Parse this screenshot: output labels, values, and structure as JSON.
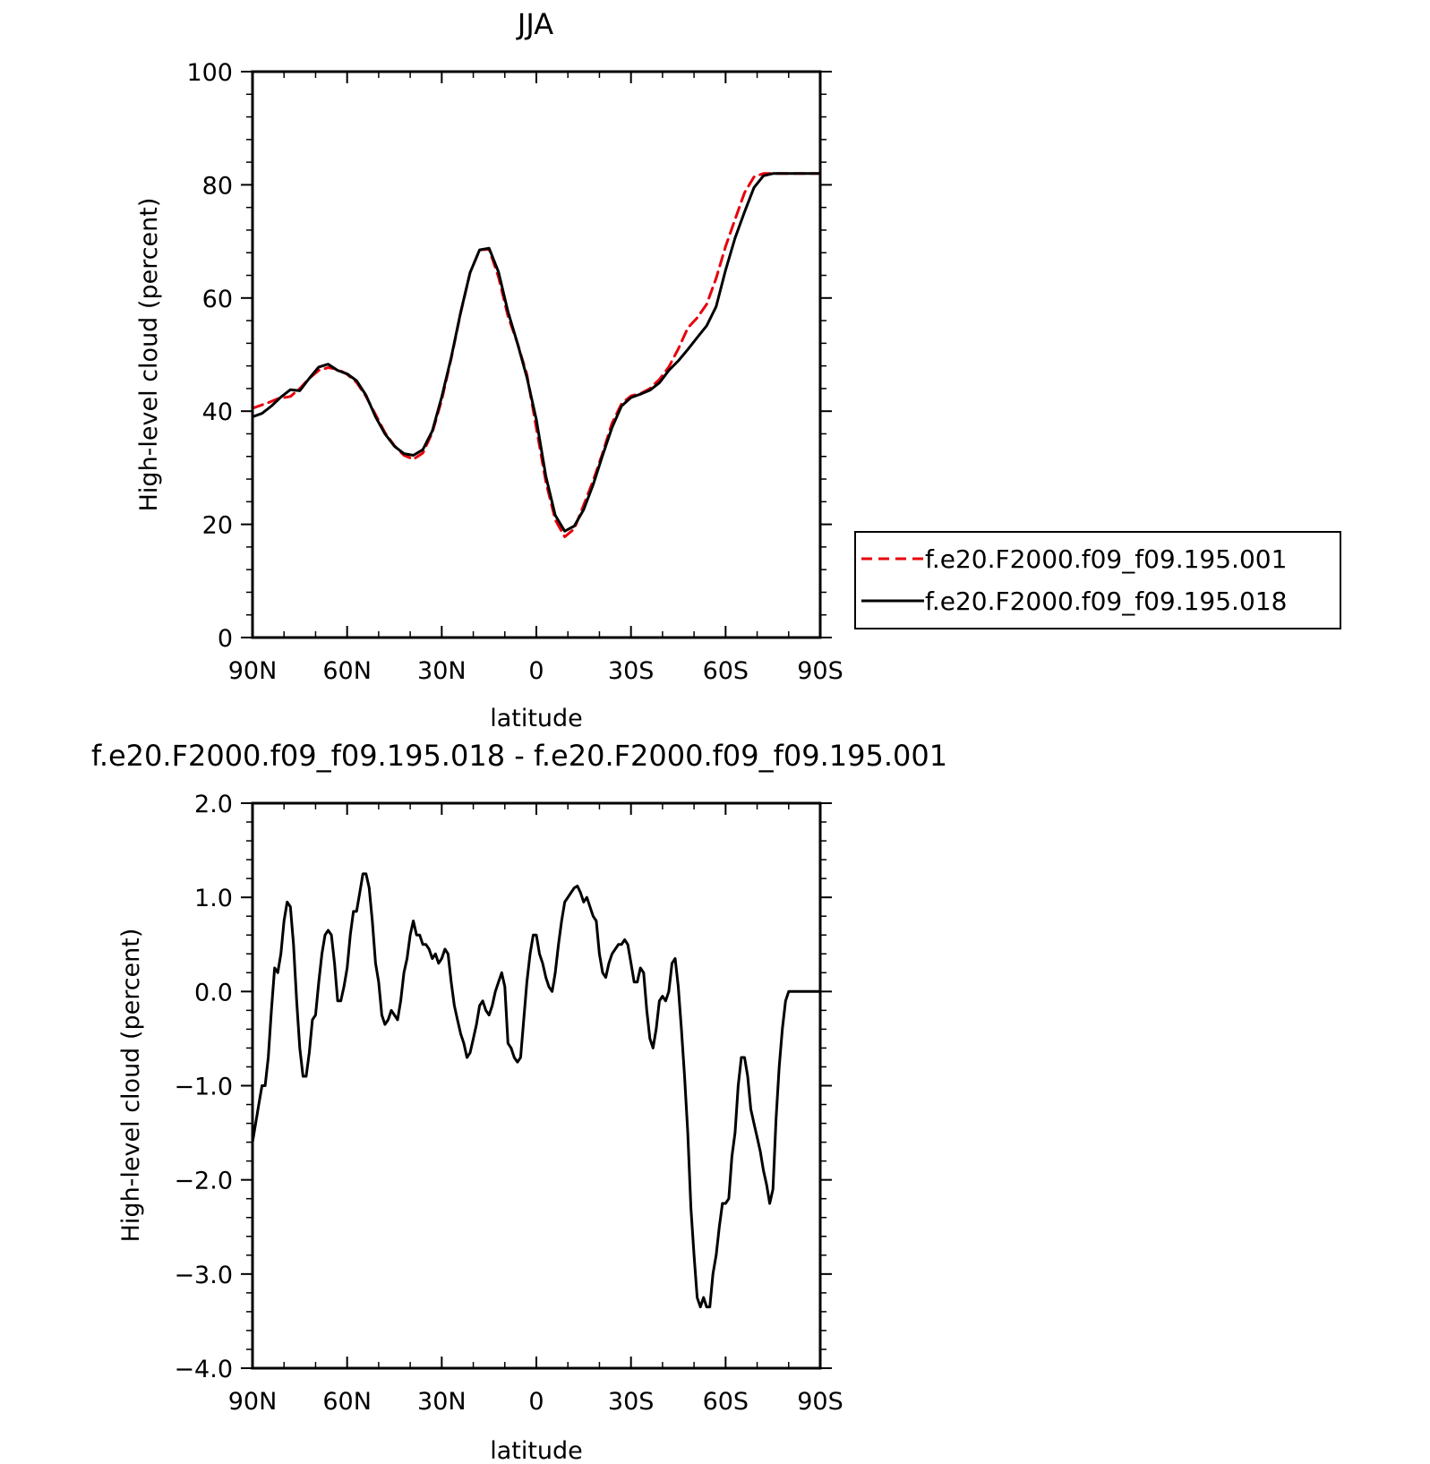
{
  "chart_data": [
    {
      "type": "line",
      "title": "JJA",
      "xlabel": "latitude",
      "ylabel": "High-level cloud (percent)",
      "xlim": [
        90,
        -90
      ],
      "ylim": [
        0,
        100
      ],
      "xticks": [
        90,
        60,
        30,
        0,
        -30,
        -60,
        -90
      ],
      "xtick_labels": [
        "90N",
        "60N",
        "30N",
        "0",
        "30S",
        "60S",
        "90S"
      ],
      "yticks": [
        0,
        20,
        40,
        60,
        80,
        100
      ],
      "ytick_labels": [
        "0",
        "20",
        "40",
        "60",
        "80",
        "100"
      ],
      "legend_position": "right",
      "series": [
        {
          "name": "f.e20.F2000.f09_f09.195.001",
          "color": "#e8000b",
          "dash": "dashed",
          "x": [
            90,
            85,
            82,
            78,
            75,
            72,
            69,
            66,
            63,
            60,
            57,
            54,
            51,
            48,
            45,
            42,
            39,
            36,
            33,
            30,
            27,
            24,
            21,
            18,
            15,
            12,
            9,
            6,
            3,
            0,
            -3,
            -6,
            -9,
            -12,
            -15,
            -18,
            -21,
            -24,
            -27,
            -30,
            -33,
            -36,
            -39,
            -42,
            -45,
            -48,
            -51,
            -54,
            -57,
            -60,
            -63,
            -66,
            -69,
            -72,
            -75,
            -78,
            -81,
            -84,
            -87,
            -90
          ],
          "y": [
            40.5,
            41.5,
            42.2,
            42.6,
            44.0,
            45.8,
            47.2,
            47.7,
            47.4,
            46.5,
            45.1,
            42.6,
            39.4,
            36.2,
            33.9,
            32.2,
            31.5,
            32.6,
            36.2,
            42.0,
            49.3,
            57.4,
            64.5,
            68.5,
            68.6,
            63.7,
            56.8,
            52.0,
            46.5,
            37.0,
            27.5,
            20.8,
            17.8,
            19.2,
            23.4,
            27.7,
            32.6,
            37.9,
            41.3,
            42.7,
            43.1,
            44.0,
            45.6,
            47.8,
            51.0,
            54.7,
            56.5,
            58.9,
            63.5,
            69.1,
            73.9,
            78.6,
            81.4,
            82.0,
            82.0,
            82.0,
            82.0,
            82.0,
            82.0,
            82.0
          ]
        },
        {
          "name": "f.e20.F2000.f09_f09.195.018",
          "color": "#000000",
          "dash": "solid",
          "x": [
            90,
            87,
            84,
            81,
            78,
            75,
            72,
            69,
            66,
            63,
            60,
            57,
            54,
            51,
            48,
            45,
            42,
            39,
            36,
            33,
            30,
            27,
            24,
            21,
            18,
            15,
            12,
            9,
            6,
            3,
            0,
            -3,
            -6,
            -9,
            -12,
            -15,
            -18,
            -21,
            -24,
            -27,
            -30,
            -33,
            -36,
            -39,
            -42,
            -45,
            -48,
            -51,
            -54,
            -57,
            -60,
            -63,
            -66,
            -69,
            -72,
            -75,
            -78,
            -81,
            -84,
            -87,
            -90
          ],
          "y": [
            39.0,
            39.6,
            40.9,
            42.5,
            43.8,
            43.6,
            45.8,
            47.8,
            48.3,
            47.2,
            46.6,
            45.4,
            42.8,
            39.0,
            36.0,
            33.8,
            32.5,
            32.2,
            33.2,
            36.5,
            42.5,
            49.5,
            57.5,
            64.5,
            68.5,
            68.8,
            64.6,
            57.6,
            52.0,
            46.0,
            38.5,
            28.5,
            21.6,
            18.8,
            19.7,
            22.6,
            27.0,
            32.2,
            37.1,
            40.9,
            42.4,
            43.0,
            43.7,
            45.0,
            47.2,
            48.9,
            50.9,
            53.0,
            55.1,
            58.5,
            64.9,
            70.6,
            75.2,
            79.5,
            81.6,
            82.0,
            82.0,
            82.0,
            82.0,
            82.0,
            82.0
          ]
        }
      ]
    },
    {
      "type": "line",
      "title": "f.e20.F2000.f09_f09.195.018 - f.e20.F2000.f09_f09.195.001",
      "xlabel": "latitude",
      "ylabel": "High-level cloud (percent)",
      "xlim": [
        90,
        -90
      ],
      "ylim": [
        -4,
        2
      ],
      "xticks": [
        90,
        60,
        30,
        0,
        -30,
        -60,
        -90
      ],
      "xtick_labels": [
        "90N",
        "60N",
        "30N",
        "0",
        "30S",
        "60S",
        "90S"
      ],
      "yticks": [
        2,
        1,
        0,
        -1,
        -2,
        -3,
        -4
      ],
      "ytick_labels": [
        "2.0",
        "1.0",
        "0.0",
        "−1.0",
        "−2.0",
        "−3.0",
        "−4.0"
      ],
      "series": [
        {
          "color": "#000000",
          "dash": "solid",
          "x": [
            90,
            89,
            88,
            87,
            86,
            85,
            84,
            83,
            82,
            81,
            80,
            79,
            78,
            77,
            76,
            75,
            74,
            73,
            72,
            71,
            70,
            69,
            68,
            67,
            66,
            65,
            64,
            63,
            62,
            61,
            60,
            59,
            58,
            57,
            56,
            55,
            54,
            53,
            52,
            51,
            50,
            49,
            48,
            47,
            46,
            45,
            44,
            43,
            42,
            41,
            40,
            39,
            38,
            37,
            36,
            35,
            34,
            33,
            32,
            31,
            30,
            29,
            28,
            27,
            26,
            25,
            24,
            23,
            22,
            21,
            20,
            19,
            18,
            17,
            16,
            15,
            14,
            13,
            12,
            11,
            10,
            9,
            8,
            7,
            6,
            5,
            4,
            3,
            2,
            1,
            0,
            -1,
            -2,
            -3,
            -4,
            -5,
            -6,
            -7,
            -8,
            -9,
            -10,
            -11,
            -12,
            -13,
            -14,
            -15,
            -16,
            -17,
            -18,
            -19,
            -20,
            -21,
            -22,
            -23,
            -24,
            -25,
            -26,
            -27,
            -28,
            -29,
            -30,
            -31,
            -32,
            -33,
            -34,
            -35,
            -36,
            -37,
            -38,
            -39,
            -40,
            -41,
            -42,
            -43,
            -44,
            -45,
            -46,
            -47,
            -48,
            -49,
            -50,
            -51,
            -52,
            -53,
            -54,
            -55,
            -56,
            -57,
            -58,
            -59,
            -60,
            -61,
            -62,
            -63,
            -64,
            -65,
            -66,
            -67,
            -68,
            -69,
            -70,
            -71,
            -72,
            -73,
            -74,
            -75,
            -76,
            -77,
            -78,
            -79,
            -80,
            -81,
            -82,
            -83,
            -84,
            -85,
            -86,
            -87,
            -88,
            -89,
            -90
          ],
          "y": [
            -1.6,
            -1.4,
            -1.2,
            -1.0,
            -1.0,
            -0.7,
            -0.2,
            0.25,
            0.2,
            0.4,
            0.75,
            0.95,
            0.9,
            0.5,
            -0.1,
            -0.6,
            -0.9,
            -0.9,
            -0.65,
            -0.3,
            -0.25,
            0.1,
            0.4,
            0.6,
            0.65,
            0.6,
            0.3,
            -0.1,
            -0.1,
            0.05,
            0.25,
            0.6,
            0.85,
            0.85,
            1.05,
            1.25,
            1.25,
            1.1,
            0.75,
            0.3,
            0.1,
            -0.25,
            -0.35,
            -0.3,
            -0.2,
            -0.25,
            -0.3,
            -0.1,
            0.2,
            0.35,
            0.6,
            0.75,
            0.6,
            0.6,
            0.5,
            0.5,
            0.45,
            0.35,
            0.4,
            0.3,
            0.35,
            0.45,
            0.4,
            0.1,
            -0.15,
            -0.3,
            -0.45,
            -0.55,
            -0.7,
            -0.65,
            -0.5,
            -0.35,
            -0.15,
            -0.1,
            -0.2,
            -0.25,
            -0.15,
            0.0,
            0.1,
            0.2,
            0.05,
            -0.55,
            -0.6,
            -0.7,
            -0.75,
            -0.7,
            -0.3,
            0.1,
            0.4,
            0.6,
            0.6,
            0.4,
            0.3,
            0.15,
            0.05,
            0.0,
            0.2,
            0.5,
            0.75,
            0.95,
            1.0,
            1.05,
            1.1,
            1.12,
            1.05,
            0.95,
            1.0,
            0.9,
            0.8,
            0.75,
            0.4,
            0.2,
            0.15,
            0.3,
            0.4,
            0.45,
            0.5,
            0.5,
            0.55,
            0.5,
            0.3,
            0.1,
            0.1,
            0.25,
            0.2,
            -0.2,
            -0.5,
            -0.6,
            -0.4,
            -0.1,
            -0.05,
            -0.1,
            0.0,
            0.3,
            0.35,
            0.05,
            -0.4,
            -0.9,
            -1.5,
            -2.3,
            -2.8,
            -3.25,
            -3.35,
            -3.25,
            -3.35,
            -3.35,
            -3.0,
            -2.8,
            -2.5,
            -2.25,
            -2.25,
            -2.2,
            -1.75,
            -1.5,
            -1.0,
            -0.7,
            -0.7,
            -0.9,
            -1.25,
            -1.4,
            -1.55,
            -1.7,
            -1.9,
            -2.05,
            -2.25,
            -2.1,
            -1.35,
            -0.8,
            -0.4,
            -0.1,
            0.0,
            0.0,
            0.0,
            0.0,
            0.0,
            0.0,
            0.0,
            0.0,
            0.0,
            0.0,
            0.0
          ]
        }
      ]
    }
  ]
}
